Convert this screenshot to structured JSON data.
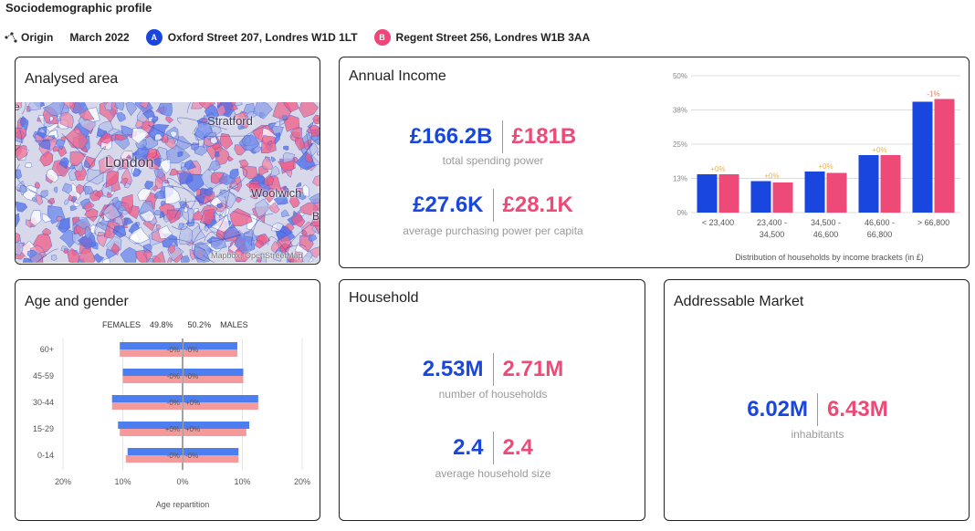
{
  "header": {
    "title": "Sociodemographic profile",
    "origin_label": "Origin",
    "date": "March 2022",
    "location_a": {
      "badge": "A",
      "label": "Oxford Street 207, Londres W1D 1LT"
    },
    "location_b": {
      "badge": "B",
      "label": "Regent Street 256, Londres W1B 3AA"
    }
  },
  "colors": {
    "a": "#1a46e0",
    "b": "#ee4a78",
    "a_light": "#4d7ef0",
    "b_light": "#f59a9a"
  },
  "map": {
    "title": "Analysed area",
    "labels": {
      "london": "London",
      "stratford": "Stratford",
      "woolwich": "Woolwich",
      "e": "e",
      "b": "B",
      "attribution": "Mapbox, OpenStreetMap"
    }
  },
  "income": {
    "title": "Annual Income",
    "spending_a": "£166.2B",
    "spending_b": "£181B",
    "spending_label": "total spending power",
    "capita_a": "£27.6K",
    "capita_b": "£28.1K",
    "capita_label": "average purchasing power per capita",
    "chart_data": {
      "type": "bar",
      "categories": [
        "< 23,400",
        "23,400 - 34,500",
        "34,500 - 46,600",
        "46,600 - 66,800",
        "> 66,800"
      ],
      "series": [
        {
          "name": "Oxford Street 207, Londres W1D 1LT",
          "values": [
            14,
            11.5,
            15,
            21,
            40.5
          ]
        },
        {
          "name": "Regent Street 256, Londres W1B 3AA",
          "values": [
            14,
            11,
            14.5,
            21,
            41.5
          ]
        }
      ],
      "annotations": [
        "+0%",
        "+0%",
        "+0%",
        "+0%",
        "-1%"
      ],
      "yticks": [
        "0%",
        "13%",
        "25%",
        "38%",
        "50%"
      ],
      "ylim": [
        0,
        50
      ],
      "xlabel": "Distribution of households by income brackets (in £)",
      "grid": true
    }
  },
  "age": {
    "title": "Age and gender",
    "females_label": "FEMALES",
    "females_pct": "49.8%",
    "males_pct": "50.2%",
    "males_label": "MALES",
    "chart_data": {
      "type": "bar",
      "orientation": "horizontal-diverging",
      "categories": [
        "60+",
        "45-59",
        "30-44",
        "15-29",
        "0-14"
      ],
      "series": [
        {
          "name": "FEMALES",
          "values_a": [
            10.5,
            10,
            11.8,
            10.8,
            9.2
          ],
          "values_b": [
            10.5,
            10,
            11.8,
            10.5,
            9.5
          ]
        },
        {
          "name": "MALES",
          "values_a": [
            9,
            10,
            12.5,
            11,
            9.2
          ],
          "values_b": [
            9,
            10,
            12.5,
            10.5,
            9.2
          ]
        }
      ],
      "female_annotations": [
        "-0%",
        "-0%",
        "-0%",
        "+0%",
        "-0%"
      ],
      "male_annotations": [
        "-0%",
        "-0%",
        "+0%",
        "+0%",
        "-0%"
      ],
      "xticks": [
        "20%",
        "10%",
        "0%",
        "10%",
        "20%"
      ],
      "xlim": [
        -20,
        20
      ],
      "xlabel": "Age repartition"
    }
  },
  "household": {
    "title": "Household",
    "count_a": "2.53M",
    "count_b": "2.71M",
    "count_label": "number of households",
    "size_a": "2.4",
    "size_b": "2.4",
    "size_label": "average household size"
  },
  "market": {
    "title": "Addressable Market",
    "inhabitants_a": "6.02M",
    "inhabitants_b": "6.43M",
    "inhabitants_label": "inhabitants"
  }
}
